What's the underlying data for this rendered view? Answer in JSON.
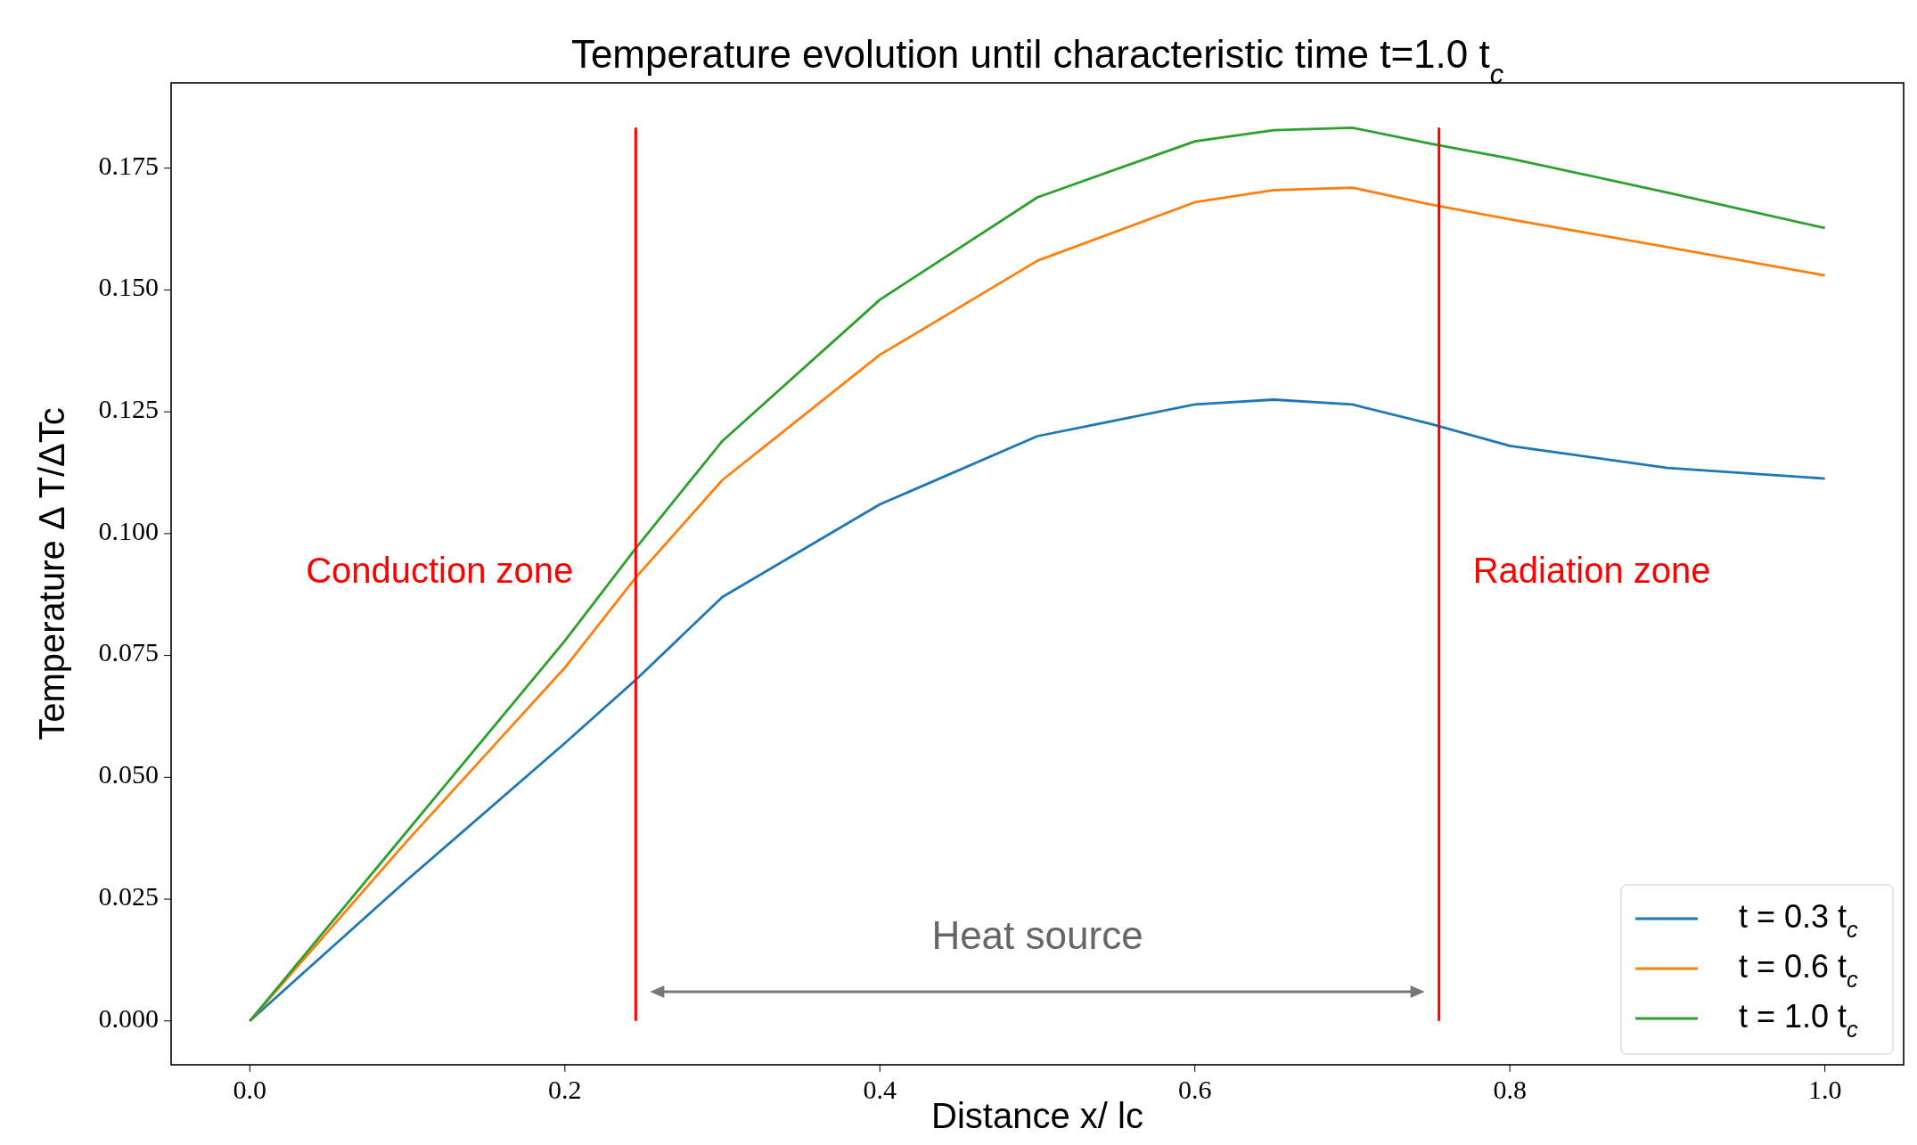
{
  "chart_data": {
    "type": "line",
    "title": "Temperature evolution until characteristic time t=1.0 t$_{c}$",
    "xlabel": "Distance x/ lc",
    "ylabel": "Temperature Δ T/ΔTc",
    "x": [
      0,
      0.1,
      0.2,
      0.245,
      0.3,
      0.4,
      0.5,
      0.6,
      0.65,
      0.7,
      0.75,
      0.8,
      0.9,
      1.0
    ],
    "series": [
      {
        "name": "t = 0.3 t$_{c}$",
        "color": "#1f77b4",
        "values": [
          0,
          0.029,
          0.057,
          0.07,
          0.087,
          0.106,
          0.12,
          0.1265,
          0.1275,
          0.1265,
          0.1225,
          0.118,
          0.1135,
          0.1113
        ]
      },
      {
        "name": "t = 0.6 t$_{c}$",
        "color": "#ff7f0e",
        "values": [
          0,
          0.037,
          0.0725,
          0.091,
          0.111,
          0.1367,
          0.156,
          0.168,
          0.1705,
          0.171,
          0.1675,
          0.1645,
          0.1588,
          0.153
        ]
      },
      {
        "name": "t = 1.0 t$_{c}$",
        "color": "#2ca02c",
        "values": [
          0,
          0.039,
          0.078,
          0.097,
          0.119,
          0.148,
          0.169,
          0.1805,
          0.1828,
          0.1833,
          0.18,
          0.177,
          0.17,
          0.1627
        ]
      }
    ],
    "xlim": [
      -0.05,
      1.05
    ],
    "ylim": [
      -0.009,
      0.1925
    ],
    "xticks": [
      {
        "value": 0,
        "label": "0.0"
      },
      {
        "value": 0.2,
        "label": "0.2"
      },
      {
        "value": 0.4,
        "label": "0.4"
      },
      {
        "value": 0.6,
        "label": "0.6"
      },
      {
        "value": 0.8,
        "label": "0.8"
      },
      {
        "value": 1,
        "label": "1.0"
      }
    ],
    "yticks": [
      {
        "value": 0,
        "label": "0.000"
      },
      {
        "value": 0.025,
        "label": "0.025"
      },
      {
        "value": 0.05,
        "label": "0.050"
      },
      {
        "value": 0.075,
        "label": "0.075"
      },
      {
        "value": 0.1,
        "label": "0.100"
      },
      {
        "value": 0.125,
        "label": "0.125"
      },
      {
        "value": 0.15,
        "label": "0.150"
      },
      {
        "value": 0.175,
        "label": "0.175"
      }
    ],
    "ref_lines": [
      {
        "axis": "x",
        "value": 0.245,
        "label": null,
        "color": "#ff0000"
      },
      {
        "axis": "x",
        "value": 0.755,
        "label": null,
        "color": "#ff0000"
      }
    ],
    "annotations": [
      "Conduction zone",
      "Radiation zone",
      "Heat source"
    ],
    "grid": false,
    "legend": "bottom right",
    "marker": "none",
    "line_style": "solid"
  }
}
